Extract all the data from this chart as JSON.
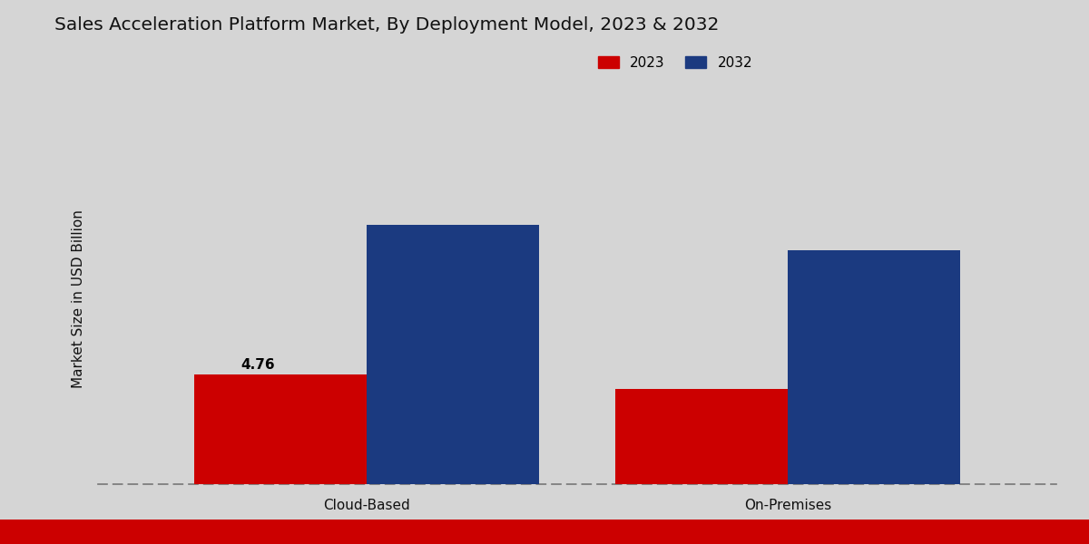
{
  "title": "Sales Acceleration Platform Market, By Deployment Model, 2023 & 2032",
  "ylabel": "Market Size in USD Billion",
  "categories": [
    "Cloud-Based",
    "On-Premises"
  ],
  "values_2023": [
    4.76,
    4.1
  ],
  "values_2032": [
    11.2,
    10.1
  ],
  "color_2023": "#CC0000",
  "color_2032": "#1B3A80",
  "label_2023": "2023",
  "label_2032": "2032",
  "annotation_cloud_2023": "4.76",
  "background_color_left": "#D8D8D8",
  "background_color_right": "#C8C8C8",
  "bottom_strip_color": "#CC0000",
  "ylim": [
    0,
    16
  ],
  "bar_width": 0.18,
  "group_positions": [
    0.28,
    0.72
  ],
  "xlim": [
    0.0,
    1.0
  ]
}
